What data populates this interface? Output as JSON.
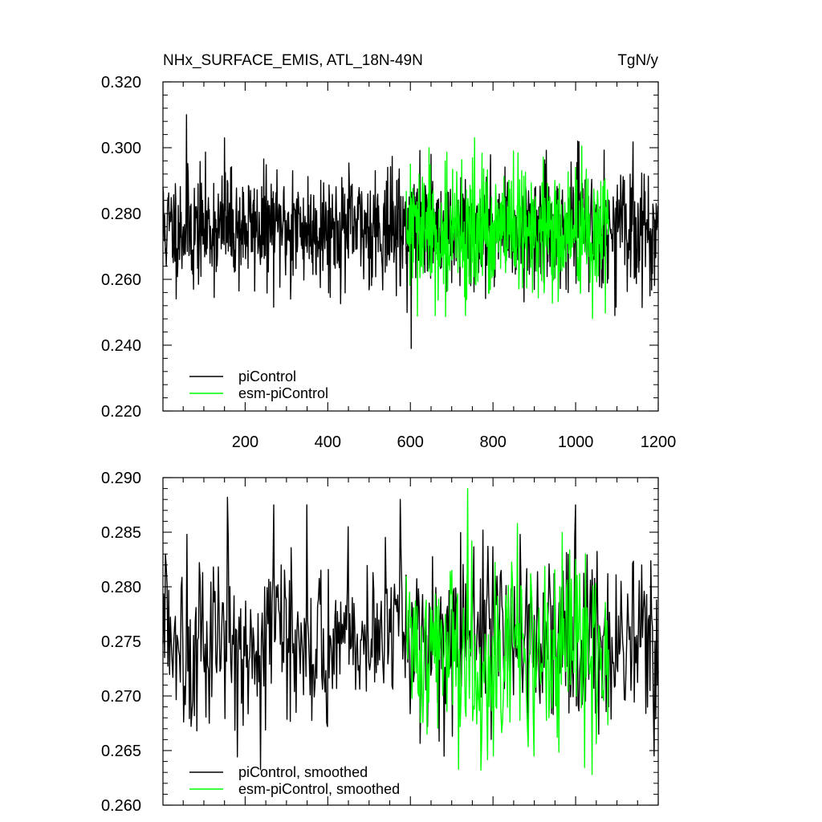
{
  "figure": {
    "title_left": "NHx_SURFACE_EMIS, ATL_18N-49N",
    "title_right": "TgN/y"
  },
  "chart_data": [
    {
      "type": "line",
      "title": "NHx_SURFACE_EMIS, ATL_18N-49N",
      "units": "TgN/y",
      "xlim": [
        1,
        1200
      ],
      "ylim": [
        0.22,
        0.32
      ],
      "xticks": [
        200,
        400,
        600,
        800,
        1000,
        1200
      ],
      "yticks": [
        0.22,
        0.24,
        0.26,
        0.28,
        0.3,
        0.32
      ],
      "ytick_labels": [
        "0.220",
        "0.240",
        "0.260",
        "0.280",
        "0.300",
        "0.320"
      ],
      "x_tick_labels_shown": true,
      "legend_position": "bottom-left",
      "grid": false,
      "series": [
        {
          "name": "piControl",
          "color": "#000000",
          "x_start": 1,
          "x_end": 1200,
          "n": 1200,
          "mean": 0.2755,
          "std": 0.0085,
          "seed": 11,
          "spikes": [
            [
              1,
              0.288
            ],
            [
              3,
              0.276
            ],
            [
              58,
              0.31
            ],
            [
              75,
              0.257
            ],
            [
              150,
              0.303
            ],
            [
              157,
              0.29
            ],
            [
              310,
              0.254
            ],
            [
              315,
              0.293
            ],
            [
              480,
              0.264
            ],
            [
              515,
              0.293
            ],
            [
              576,
              0.258
            ],
            [
              602,
              0.239
            ],
            [
              650,
              0.298
            ],
            [
              700,
              0.259
            ],
            [
              765,
              0.262
            ],
            [
              810,
              0.278
            ],
            [
              1005,
              0.302
            ],
            [
              1095,
              0.249
            ],
            [
              1180,
              0.255
            ],
            [
              1195,
              0.283
            ]
          ]
        },
        {
          "name": "esm-piControl",
          "color": "#00ff00",
          "x_start": 590,
          "x_end": 1080,
          "n": 490,
          "mean": 0.2735,
          "std": 0.0095,
          "seed": 29,
          "spikes": [
            [
              600,
              0.295
            ],
            [
              645,
              0.3
            ],
            [
              660,
              0.249
            ],
            [
              755,
              0.303
            ],
            [
              790,
              0.256
            ],
            [
              830,
              0.262
            ],
            [
              850,
              0.299
            ],
            [
              870,
              0.293
            ],
            [
              950,
              0.29
            ],
            [
              970,
              0.264
            ],
            [
              1000,
              0.294
            ],
            [
              1035,
              0.259
            ]
          ]
        }
      ]
    },
    {
      "type": "line",
      "xlim": [
        1,
        1200
      ],
      "ylim": [
        0.26,
        0.29
      ],
      "xticks": [
        200,
        400,
        600,
        800,
        1000,
        1200
      ],
      "yticks": [
        0.26,
        0.265,
        0.27,
        0.275,
        0.28,
        0.285,
        0.29
      ],
      "ytick_labels": [
        "0.260",
        "0.265",
        "0.270",
        "0.275",
        "0.280",
        "0.285",
        "0.290"
      ],
      "x_tick_labels_shown": false,
      "legend_position": "bottom-left",
      "grid": false,
      "series": [
        {
          "name": "piControl, smoothed",
          "color": "#000000",
          "x_start": 1,
          "x_end": 1200,
          "n": 600,
          "mean": 0.2755,
          "std": 0.0038,
          "seed": 5,
          "spikes": [
            [
              8,
              0.283
            ],
            [
              60,
              0.2848
            ],
            [
              78,
              0.2682
            ],
            [
              113,
              0.2675
            ],
            [
              157,
              0.2882
            ],
            [
              196,
              0.2673
            ],
            [
              270,
              0.2875
            ],
            [
              350,
              0.2875
            ],
            [
              400,
              0.2672
            ],
            [
              450,
              0.2855
            ],
            [
              510,
              0.2813
            ],
            [
              535,
              0.2712
            ],
            [
              575,
              0.288
            ],
            [
              775,
              0.2852
            ],
            [
              820,
              0.2815
            ],
            [
              865,
              0.2848
            ],
            [
              935,
              0.2821
            ],
            [
              945,
              0.2683
            ],
            [
              1000,
              0.2875
            ],
            [
              1055,
              0.2665
            ],
            [
              1078,
              0.2812
            ],
            [
              1110,
              0.2805
            ],
            [
              1180,
              0.2705
            ],
            [
              1190,
              0.2645
            ]
          ]
        },
        {
          "name": "esm-piControl, smoothed",
          "color": "#00ff00",
          "x_start": 590,
          "x_end": 1080,
          "n": 245,
          "mean": 0.274,
          "std": 0.0042,
          "seed": 41,
          "spikes": [
            [
              612,
              0.2787
            ],
            [
              640,
              0.2665
            ],
            [
              700,
              0.2815
            ],
            [
              720,
              0.2672
            ],
            [
              738,
              0.289
            ],
            [
              770,
              0.2632
            ],
            [
              800,
              0.2645
            ],
            [
              860,
              0.2858
            ],
            [
              900,
              0.2645
            ],
            [
              935,
              0.268
            ],
            [
              1000,
              0.2825
            ],
            [
              1010,
              0.2812
            ],
            [
              1040,
              0.2628
            ],
            [
              1055,
              0.2765
            ]
          ]
        }
      ]
    }
  ]
}
